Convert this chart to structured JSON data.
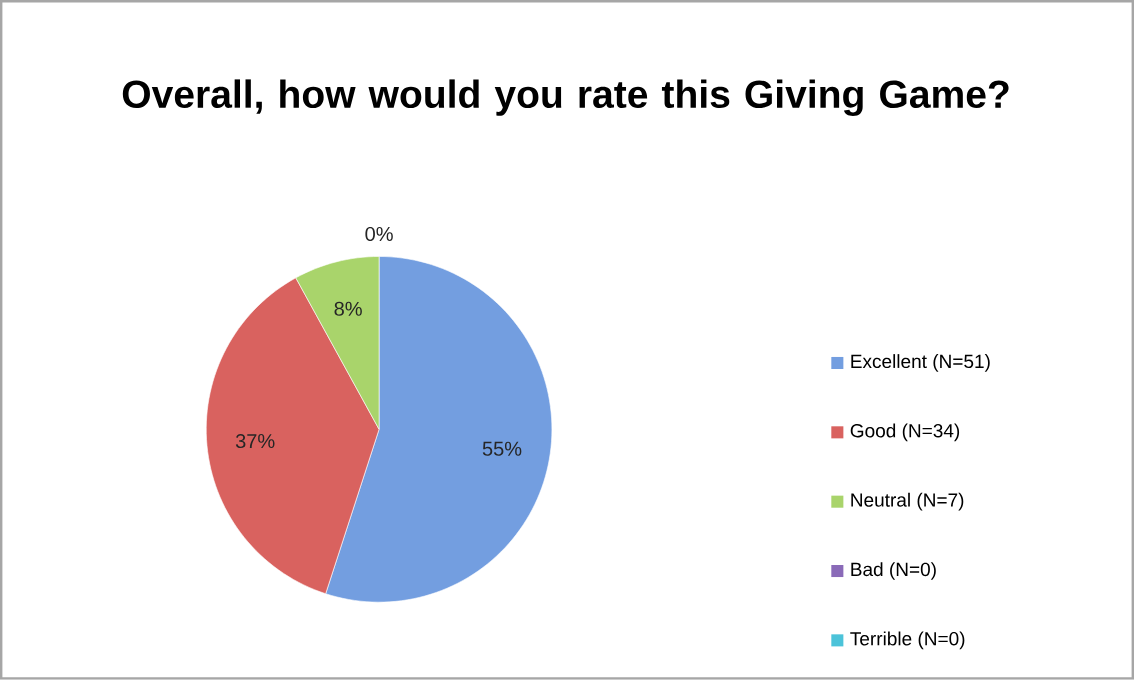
{
  "chart_data": {
    "type": "pie",
    "title": "Overall, how would you rate this Giving Game?",
    "categories": [
      "Excellent (N=51)",
      "Good (N=34)",
      "Neutral (N=7)",
      "Bad (N=0)",
      "Terrible (N=0)"
    ],
    "values": [
      55,
      37,
      8,
      0,
      0
    ],
    "colors": [
      "#739ee0",
      "#d9625f",
      "#a9d46b",
      "#8a6ab8",
      "#4cc3d9"
    ],
    "value_labels": [
      "55%",
      "37%",
      "8%",
      "0%",
      null
    ],
    "legend": "right"
  }
}
